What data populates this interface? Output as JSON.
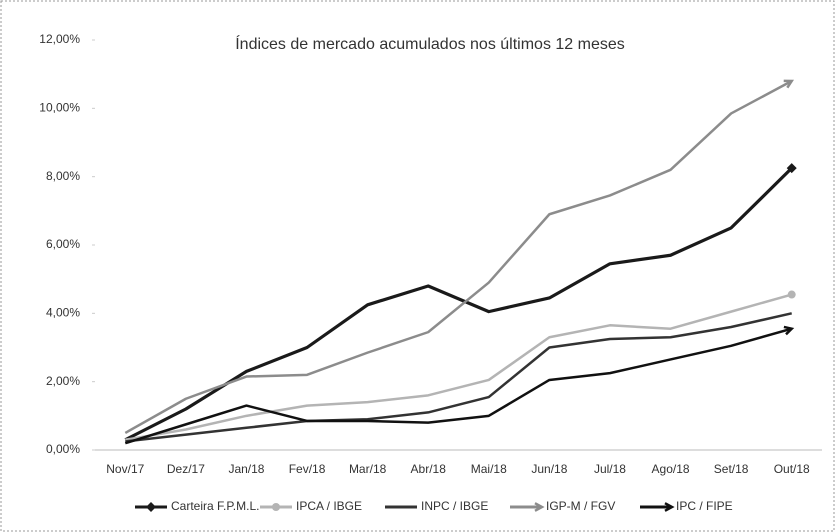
{
  "chart_data": {
    "type": "line",
    "title": "Índices de mercado acumulados nos últimos 12 meses",
    "categories": [
      "Nov/17",
      "Dez/17",
      "Jan/18",
      "Fev/18",
      "Mar/18",
      "Abr/18",
      "Mai/18",
      "Jun/18",
      "Jul/18",
      "Ago/18",
      "Set/18",
      "Out/18"
    ],
    "series": [
      {
        "name": "Carteira F.P.M.L.",
        "color": "#1a1a1a",
        "marker": "diamond",
        "values": [
          0.3,
          1.2,
          2.3,
          3.0,
          4.25,
          4.8,
          4.05,
          4.45,
          5.45,
          5.7,
          6.5,
          8.25
        ]
      },
      {
        "name": "IPCA / IBGE",
        "color": "#b4b4b4",
        "marker": "circle",
        "values": [
          0.3,
          0.6,
          1.0,
          1.3,
          1.4,
          1.6,
          2.05,
          3.3,
          3.65,
          3.55,
          4.05,
          4.55
        ]
      },
      {
        "name": "INPC / IBGE",
        "color": "#333333",
        "marker": "none",
        "values": [
          0.25,
          0.45,
          0.65,
          0.85,
          0.9,
          1.1,
          1.55,
          3.0,
          3.25,
          3.3,
          3.6,
          4.0
        ]
      },
      {
        "name": "IGP-M / FGV",
        "color": "#8c8c8c",
        "marker": "arrow",
        "values": [
          0.5,
          1.5,
          2.15,
          2.2,
          2.85,
          3.45,
          4.9,
          6.9,
          7.45,
          8.2,
          9.85,
          10.8
        ]
      },
      {
        "name": "IPC / FIPE",
        "color": "#111111",
        "marker": "arrow",
        "values": [
          0.2,
          0.75,
          1.3,
          0.85,
          0.85,
          0.8,
          1.0,
          2.05,
          2.25,
          2.65,
          3.05,
          3.55
        ]
      }
    ],
    "ylim": [
      0,
      12
    ],
    "yticks": [
      {
        "value": 0,
        "label": "0,00%"
      },
      {
        "value": 2,
        "label": "2,00%"
      },
      {
        "value": 4,
        "label": "4,00%"
      },
      {
        "value": 6,
        "label": "6,00%"
      },
      {
        "value": 8,
        "label": "8,00%"
      },
      {
        "value": 10,
        "label": "10,00%"
      },
      {
        "value": 12,
        "label": "12,00%"
      }
    ],
    "grid": false,
    "legend": "bottom"
  }
}
